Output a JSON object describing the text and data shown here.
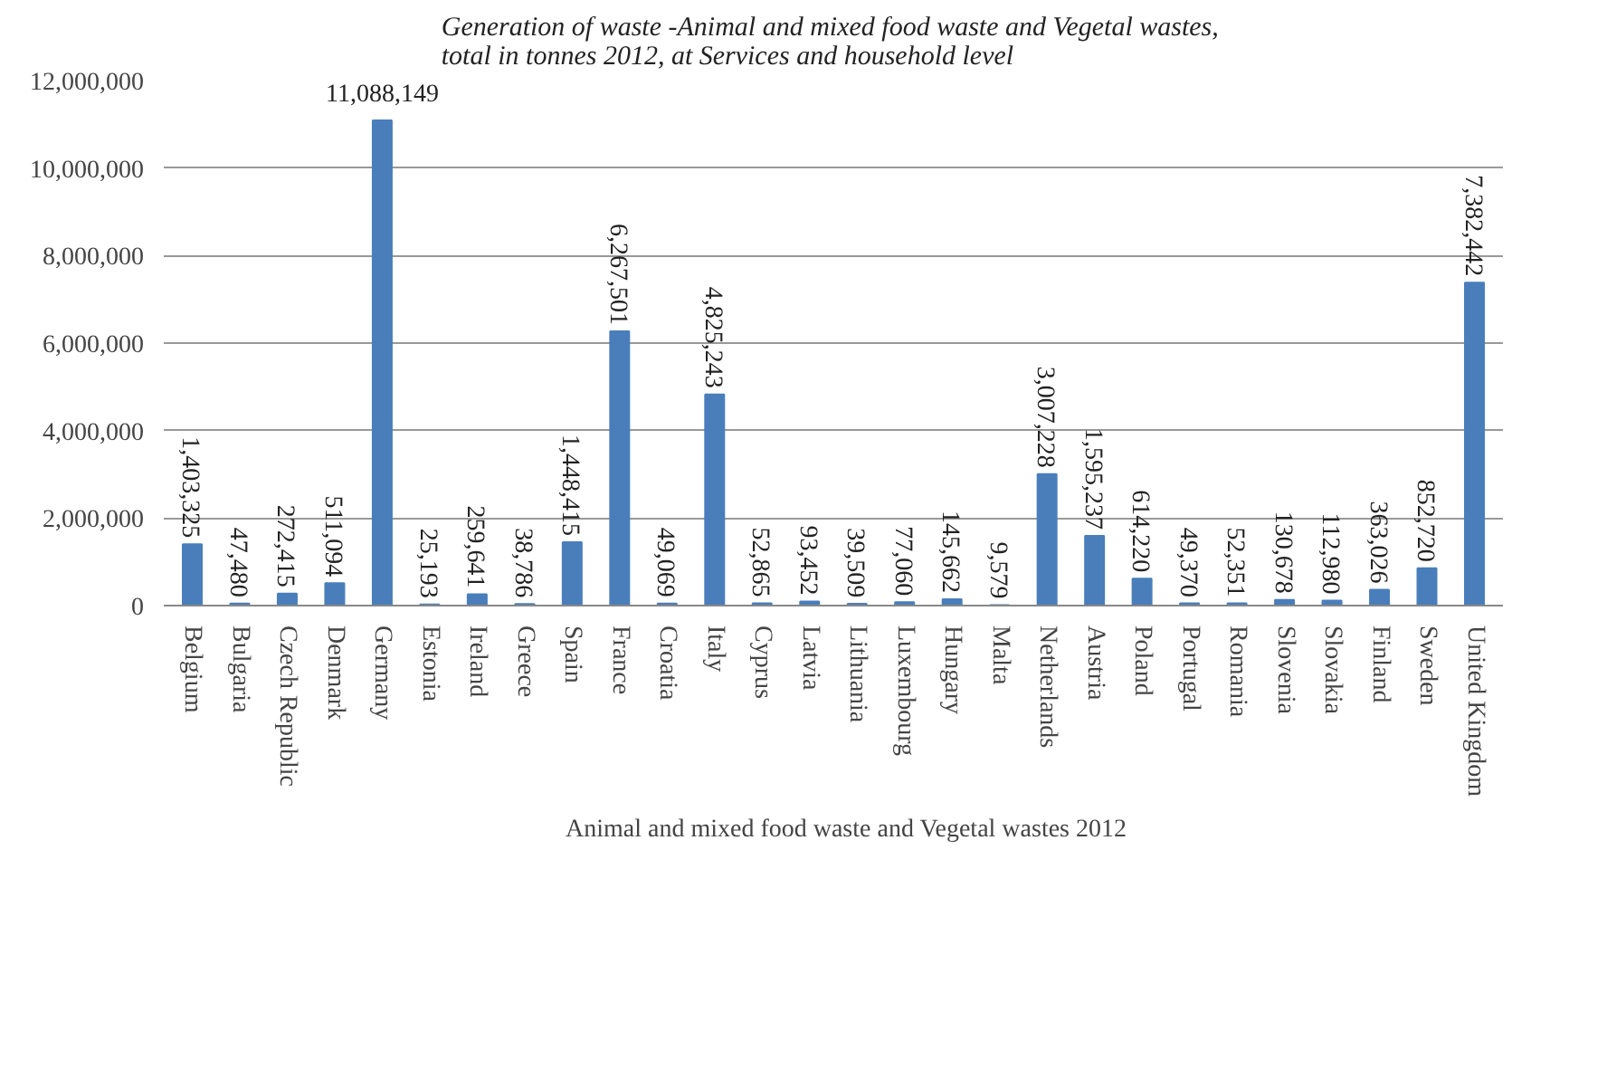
{
  "chart_data": {
    "type": "bar",
    "title": "Generation of waste -Animal and mixed food waste and  Vegetal wastes, total in tonnes 2012,  at Services and household level",
    "categories": [
      "Belgium",
      "Bulgaria",
      "Czech Republic",
      "Denmark",
      "Germany",
      "Estonia",
      "Ireland",
      "Greece",
      "Spain",
      "France",
      "Croatia",
      "Italy",
      "Cyprus",
      "Latvia",
      "Lithuania",
      "Luxembourg",
      "Hungary",
      "Malta",
      "Netherlands",
      "Austria",
      "Poland",
      "Portugal",
      "Romania",
      "Slovenia",
      "Slovakia",
      "Finland",
      "Sweden",
      "United Kingdom"
    ],
    "series": [
      {
        "name": "Animal and mixed food waste and Vegetal wastes 2012",
        "color": "#4a7ebb",
        "value_labels": [
          "1,403,325",
          "47,480",
          "272,415",
          "511,094",
          "11,088,149",
          "25,193",
          "259,641",
          "38,786",
          "1,448,415",
          "6,267,501",
          "49,069",
          "4,825,243",
          "52,865",
          "93,452",
          "39,509",
          "77,060",
          "145,662",
          "9,579",
          "3,007,228",
          "1,595,237",
          "614,220",
          "49,370",
          "52,351",
          "130,678",
          "112,980",
          "363,026",
          "852,720",
          "7,382,442"
        ],
        "values": [
          1403325,
          47480,
          272415,
          511094,
          11088149,
          25193,
          259641,
          38786,
          1448415,
          6267501,
          49069,
          4825243,
          52865,
          93452,
          39509,
          77060,
          145662,
          9579,
          3007228,
          1595237,
          614220,
          49370,
          52351,
          130678,
          112980,
          363026,
          852720,
          7382442
        ]
      }
    ],
    "ylim": [
      0,
      12000000
    ],
    "yticks": [
      {
        "value": 0,
        "label": "0"
      },
      {
        "value": 2000000,
        "label": "2,000,000"
      },
      {
        "value": 4000000,
        "label": "4,000,000"
      },
      {
        "value": 6000000,
        "label": "6,000,000"
      },
      {
        "value": 8000000,
        "label": "8,000,000"
      },
      {
        "value": 10000000,
        "label": "10,000,000"
      },
      {
        "value": 12000000,
        "label": "12,000,000"
      }
    ],
    "grid": "y",
    "legend": "bottom",
    "data_labels": true
  }
}
